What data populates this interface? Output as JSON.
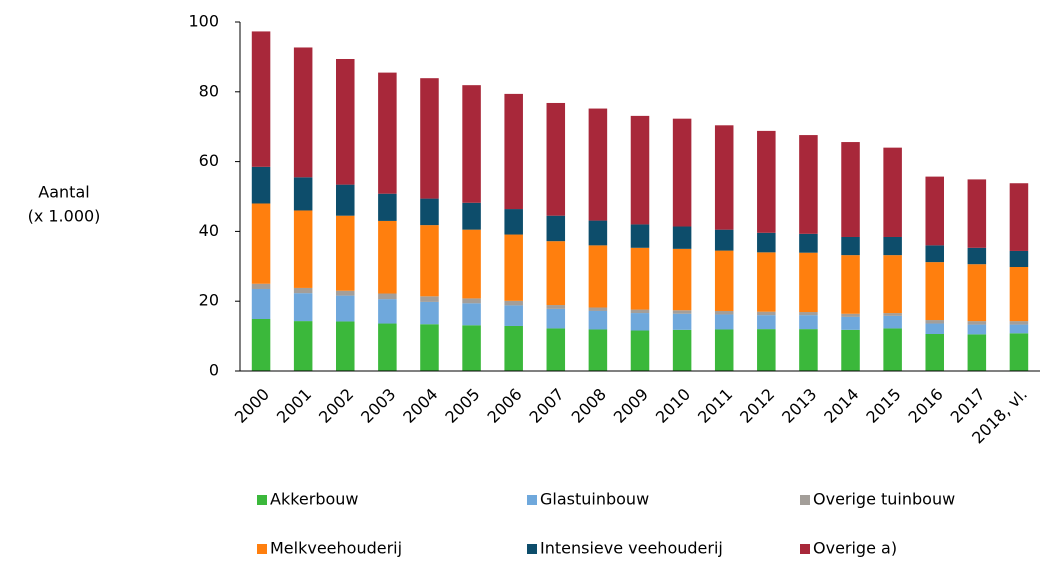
{
  "chart_data": {
    "type": "stacked_bar",
    "y_label": [
      "Aantal",
      "(x 1.000)"
    ],
    "categories": [
      "2000",
      "2001",
      "2002",
      "2003",
      "2004",
      "2005",
      "2006",
      "2007",
      "2008",
      "2009",
      "2010",
      "2011",
      "2012",
      "2013",
      "2014",
      "2015",
      "2016",
      "2017",
      "2018, vl."
    ],
    "series": [
      {
        "name": "Akkerbouw",
        "color": "#3bb83b",
        "values": [
          14.9,
          14.3,
          14.2,
          13.6,
          13.4,
          13.1,
          12.9,
          12.2,
          11.9,
          11.6,
          11.8,
          11.9,
          12.0,
          12.0,
          11.8,
          12.2,
          10.6,
          10.5,
          10.8
        ]
      },
      {
        "name": "Glastuinbouw",
        "color": "#6fa8dc",
        "values": [
          8.6,
          8.0,
          7.4,
          7.0,
          6.4,
          6.3,
          5.9,
          5.6,
          5.3,
          5.0,
          4.6,
          4.3,
          4.0,
          4.0,
          3.7,
          3.6,
          3.0,
          2.8,
          2.5
        ]
      },
      {
        "name": "Overige tuinbouw",
        "color": "#a39e99",
        "values": [
          1.5,
          1.5,
          1.4,
          1.6,
          1.6,
          1.4,
          1.3,
          1.1,
          1.0,
          1.0,
          1.0,
          1.0,
          1.0,
          0.9,
          0.9,
          0.8,
          1.0,
          1.0,
          1.0
        ]
      },
      {
        "name": "Melkveehouderij",
        "color": "#ff7f0e",
        "values": [
          23.0,
          22.2,
          21.5,
          20.8,
          20.4,
          19.7,
          19.0,
          18.3,
          17.8,
          17.7,
          17.6,
          17.3,
          17.0,
          17.0,
          16.8,
          16.6,
          16.6,
          16.3,
          15.5
        ]
      },
      {
        "name": "Intensieve veehouderij",
        "color": "#0d4d6b",
        "values": [
          10.5,
          9.5,
          8.9,
          7.8,
          7.6,
          7.7,
          7.3,
          7.3,
          7.1,
          6.7,
          6.4,
          6.0,
          5.6,
          5.4,
          5.2,
          5.2,
          4.8,
          4.7,
          4.6
        ]
      },
      {
        "name": "Overige a)",
        "color": "#a8283a",
        "values": [
          38.8,
          37.2,
          36.0,
          34.7,
          34.5,
          33.7,
          33.0,
          32.3,
          32.1,
          31.1,
          30.9,
          29.9,
          29.2,
          28.3,
          27.2,
          25.6,
          19.7,
          19.6,
          19.4
        ]
      }
    ],
    "ylim": [
      0,
      100
    ],
    "yticks": [
      0,
      20,
      40,
      60,
      80,
      100
    ],
    "grid": false
  }
}
